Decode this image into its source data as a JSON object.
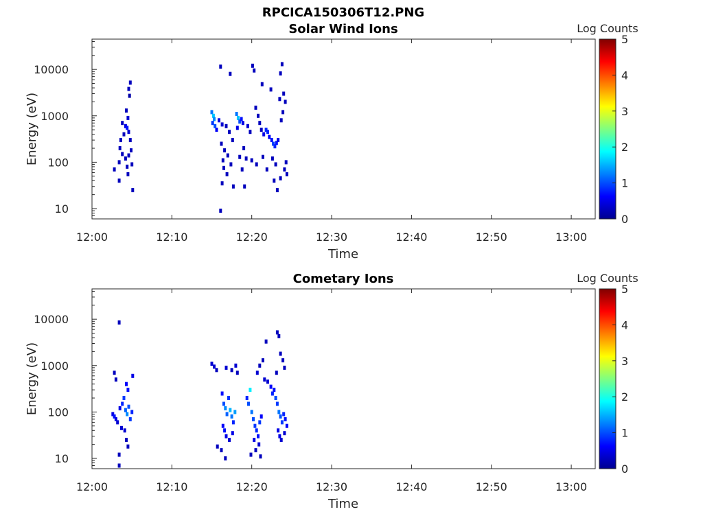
{
  "figure_title": "RPCICA150306T12.PNG",
  "colormap_name": "jet",
  "chart_data": [
    {
      "type": "heatmap",
      "title": "Solar Wind Ions",
      "xlabel": "Time",
      "ylabel": "Energy (eV)",
      "x_ticks": [
        "12:00",
        "12:10",
        "12:20",
        "12:30",
        "12:40",
        "12:50",
        "13:00"
      ],
      "xlim": [
        "12:00",
        "13:03"
      ],
      "y_scale": "log",
      "y_ticks": [
        "10",
        "100",
        "1000",
        "10000"
      ],
      "ylim": [
        6,
        45000
      ],
      "colorbar": {
        "label": "Log Counts",
        "ticks": [
          "0",
          "1",
          "2",
          "3",
          "4",
          "5"
        ],
        "range": [
          0,
          5
        ]
      },
      "cells": [
        {
          "t": 4.8,
          "e": 5200,
          "v": 0.3
        },
        {
          "t": 4.6,
          "e": 3800,
          "v": 0.3
        },
        {
          "t": 4.7,
          "e": 2700,
          "v": 0.2
        },
        {
          "t": 4.3,
          "e": 1300,
          "v": 0.3
        },
        {
          "t": 4.5,
          "e": 900,
          "v": 0.4
        },
        {
          "t": 3.8,
          "e": 700,
          "v": 0.3
        },
        {
          "t": 4.2,
          "e": 600,
          "v": 0.5
        },
        {
          "t": 4.4,
          "e": 550,
          "v": 0.7
        },
        {
          "t": 4.6,
          "e": 450,
          "v": 0.4
        },
        {
          "t": 4.0,
          "e": 400,
          "v": 0.3
        },
        {
          "t": 3.6,
          "e": 300,
          "v": 0.3
        },
        {
          "t": 4.8,
          "e": 300,
          "v": 0.3
        },
        {
          "t": 3.5,
          "e": 200,
          "v": 0.3
        },
        {
          "t": 4.9,
          "e": 180,
          "v": 0.3
        },
        {
          "t": 3.8,
          "e": 150,
          "v": 0.3
        },
        {
          "t": 4.6,
          "e": 140,
          "v": 0.3
        },
        {
          "t": 4.2,
          "e": 120,
          "v": 0.3
        },
        {
          "t": 3.4,
          "e": 100,
          "v": 0.3
        },
        {
          "t": 5.0,
          "e": 90,
          "v": 0.3
        },
        {
          "t": 4.4,
          "e": 80,
          "v": 0.3
        },
        {
          "t": 2.8,
          "e": 70,
          "v": 0.3
        },
        {
          "t": 4.5,
          "e": 55,
          "v": 0.3
        },
        {
          "t": 3.4,
          "e": 40,
          "v": 0.3
        },
        {
          "t": 5.1,
          "e": 25,
          "v": 0.3
        },
        {
          "t": 15.0,
          "e": 1200,
          "v": 1.2
        },
        {
          "t": 15.2,
          "e": 1000,
          "v": 1.6
        },
        {
          "t": 15.3,
          "e": 850,
          "v": 1.3
        },
        {
          "t": 15.1,
          "e": 700,
          "v": 0.9
        },
        {
          "t": 15.4,
          "e": 600,
          "v": 1.0
        },
        {
          "t": 15.6,
          "e": 500,
          "v": 0.6
        },
        {
          "t": 15.9,
          "e": 800,
          "v": 0.5
        },
        {
          "t": 16.3,
          "e": 650,
          "v": 0.4
        },
        {
          "t": 16.1,
          "e": 11500,
          "v": 0.3
        },
        {
          "t": 17.3,
          "e": 8000,
          "v": 0.3
        },
        {
          "t": 16.8,
          "e": 600,
          "v": 0.3
        },
        {
          "t": 17.2,
          "e": 450,
          "v": 0.3
        },
        {
          "t": 17.6,
          "e": 300,
          "v": 0.3
        },
        {
          "t": 18.1,
          "e": 1100,
          "v": 1.2
        },
        {
          "t": 18.3,
          "e": 900,
          "v": 1.6
        },
        {
          "t": 18.5,
          "e": 750,
          "v": 1.0
        },
        {
          "t": 18.7,
          "e": 850,
          "v": 0.7
        },
        {
          "t": 18.9,
          "e": 700,
          "v": 0.5
        },
        {
          "t": 18.2,
          "e": 550,
          "v": 0.5
        },
        {
          "t": 19.5,
          "e": 600,
          "v": 0.4
        },
        {
          "t": 19.8,
          "e": 450,
          "v": 0.3
        },
        {
          "t": 20.1,
          "e": 12000,
          "v": 0.3
        },
        {
          "t": 20.3,
          "e": 9500,
          "v": 0.3
        },
        {
          "t": 20.5,
          "e": 1500,
          "v": 0.3
        },
        {
          "t": 20.8,
          "e": 1000,
          "v": 0.3
        },
        {
          "t": 21.3,
          "e": 4800,
          "v": 0.3
        },
        {
          "t": 21.0,
          "e": 700,
          "v": 0.3
        },
        {
          "t": 21.2,
          "e": 500,
          "v": 0.3
        },
        {
          "t": 21.5,
          "e": 400,
          "v": 0.5
        },
        {
          "t": 21.8,
          "e": 500,
          "v": 0.8
        },
        {
          "t": 22.0,
          "e": 450,
          "v": 0.8
        },
        {
          "t": 22.2,
          "e": 350,
          "v": 0.6
        },
        {
          "t": 22.5,
          "e": 300,
          "v": 0.7
        },
        {
          "t": 22.7,
          "e": 250,
          "v": 0.9
        },
        {
          "t": 22.9,
          "e": 220,
          "v": 0.8
        },
        {
          "t": 23.1,
          "e": 260,
          "v": 0.7
        },
        {
          "t": 23.3,
          "e": 300,
          "v": 0.5
        },
        {
          "t": 22.4,
          "e": 3700,
          "v": 0.3
        },
        {
          "t": 23.5,
          "e": 2300,
          "v": 0.3
        },
        {
          "t": 23.8,
          "e": 13000,
          "v": 0.3
        },
        {
          "t": 23.6,
          "e": 8200,
          "v": 0.3
        },
        {
          "t": 24.0,
          "e": 3000,
          "v": 0.3
        },
        {
          "t": 24.2,
          "e": 2000,
          "v": 0.3
        },
        {
          "t": 23.9,
          "e": 1200,
          "v": 0.3
        },
        {
          "t": 23.7,
          "e": 800,
          "v": 0.3
        },
        {
          "t": 16.2,
          "e": 250,
          "v": 0.3
        },
        {
          "t": 16.6,
          "e": 180,
          "v": 0.3
        },
        {
          "t": 17.0,
          "e": 140,
          "v": 0.3
        },
        {
          "t": 16.4,
          "e": 110,
          "v": 0.3
        },
        {
          "t": 17.4,
          "e": 90,
          "v": 0.3
        },
        {
          "t": 16.5,
          "e": 75,
          "v": 0.3
        },
        {
          "t": 16.9,
          "e": 55,
          "v": 0.3
        },
        {
          "t": 16.3,
          "e": 35,
          "v": 0.3
        },
        {
          "t": 17.7,
          "e": 30,
          "v": 0.3
        },
        {
          "t": 16.1,
          "e": 9,
          "v": 0.3
        },
        {
          "t": 19.0,
          "e": 200,
          "v": 0.3
        },
        {
          "t": 18.5,
          "e": 130,
          "v": 0.3
        },
        {
          "t": 19.3,
          "e": 120,
          "v": 0.3
        },
        {
          "t": 18.8,
          "e": 70,
          "v": 0.3
        },
        {
          "t": 20.0,
          "e": 110,
          "v": 0.3
        },
        {
          "t": 20.6,
          "e": 90,
          "v": 0.3
        },
        {
          "t": 21.4,
          "e": 130,
          "v": 0.3
        },
        {
          "t": 21.9,
          "e": 70,
          "v": 0.3
        },
        {
          "t": 22.6,
          "e": 120,
          "v": 0.3
        },
        {
          "t": 23.0,
          "e": 90,
          "v": 0.3
        },
        {
          "t": 22.8,
          "e": 40,
          "v": 0.3
        },
        {
          "t": 23.2,
          "e": 25,
          "v": 0.3
        },
        {
          "t": 23.6,
          "e": 45,
          "v": 0.3
        },
        {
          "t": 24.1,
          "e": 70,
          "v": 0.3
        },
        {
          "t": 24.3,
          "e": 100,
          "v": 0.3
        },
        {
          "t": 19.1,
          "e": 30,
          "v": 0.3
        },
        {
          "t": 24.4,
          "e": 55,
          "v": 0.3
        }
      ]
    },
    {
      "type": "heatmap",
      "title": "Cometary Ions",
      "xlabel": "Time",
      "ylabel": "Energy (eV)",
      "x_ticks": [
        "12:00",
        "12:10",
        "12:20",
        "12:30",
        "12:40",
        "12:50",
        "13:00"
      ],
      "xlim": [
        "12:00",
        "13:03"
      ],
      "y_scale": "log",
      "y_ticks": [
        "10",
        "100",
        "1000",
        "10000"
      ],
      "ylim": [
        6,
        45000
      ],
      "colorbar": {
        "label": "Log Counts",
        "ticks": [
          "0",
          "1",
          "2",
          "3",
          "4",
          "5"
        ],
        "range": [
          0,
          5
        ]
      },
      "cells": [
        {
          "t": 3.4,
          "e": 8500,
          "v": 0.3
        },
        {
          "t": 2.8,
          "e": 700,
          "v": 0.3
        },
        {
          "t": 3.0,
          "e": 500,
          "v": 0.3
        },
        {
          "t": 2.6,
          "e": 90,
          "v": 0.5
        },
        {
          "t": 2.8,
          "e": 80,
          "v": 0.7
        },
        {
          "t": 3.0,
          "e": 70,
          "v": 0.5
        },
        {
          "t": 3.2,
          "e": 60,
          "v": 0.4
        },
        {
          "t": 3.5,
          "e": 120,
          "v": 0.5
        },
        {
          "t": 3.8,
          "e": 150,
          "v": 0.8
        },
        {
          "t": 4.0,
          "e": 200,
          "v": 0.9
        },
        {
          "t": 4.2,
          "e": 110,
          "v": 1.1
        },
        {
          "t": 4.4,
          "e": 90,
          "v": 1.3
        },
        {
          "t": 4.6,
          "e": 130,
          "v": 1.0
        },
        {
          "t": 4.8,
          "e": 70,
          "v": 0.9
        },
        {
          "t": 5.0,
          "e": 100,
          "v": 0.8
        },
        {
          "t": 4.3,
          "e": 400,
          "v": 0.6
        },
        {
          "t": 4.5,
          "e": 300,
          "v": 0.7
        },
        {
          "t": 5.1,
          "e": 600,
          "v": 0.5
        },
        {
          "t": 3.7,
          "e": 45,
          "v": 0.4
        },
        {
          "t": 4.1,
          "e": 40,
          "v": 0.4
        },
        {
          "t": 3.4,
          "e": 12,
          "v": 0.3
        },
        {
          "t": 4.3,
          "e": 25,
          "v": 0.3
        },
        {
          "t": 3.4,
          "e": 7,
          "v": 0.3
        },
        {
          "t": 4.5,
          "e": 18,
          "v": 0.3
        },
        {
          "t": 15.0,
          "e": 1100,
          "v": 0.4
        },
        {
          "t": 15.3,
          "e": 950,
          "v": 0.4
        },
        {
          "t": 15.6,
          "e": 800,
          "v": 0.3
        },
        {
          "t": 16.8,
          "e": 900,
          "v": 0.4
        },
        {
          "t": 17.5,
          "e": 800,
          "v": 0.3
        },
        {
          "t": 18.0,
          "e": 1000,
          "v": 0.4
        },
        {
          "t": 18.2,
          "e": 700,
          "v": 0.3
        },
        {
          "t": 16.3,
          "e": 250,
          "v": 0.7
        },
        {
          "t": 16.5,
          "e": 150,
          "v": 1.0
        },
        {
          "t": 16.7,
          "e": 120,
          "v": 1.3
        },
        {
          "t": 16.9,
          "e": 90,
          "v": 1.1
        },
        {
          "t": 17.1,
          "e": 200,
          "v": 0.9
        },
        {
          "t": 17.3,
          "e": 110,
          "v": 1.5
        },
        {
          "t": 17.5,
          "e": 80,
          "v": 1.2
        },
        {
          "t": 17.7,
          "e": 60,
          "v": 0.8
        },
        {
          "t": 17.9,
          "e": 100,
          "v": 1.4
        },
        {
          "t": 16.4,
          "e": 50,
          "v": 0.6
        },
        {
          "t": 16.6,
          "e": 40,
          "v": 0.7
        },
        {
          "t": 16.8,
          "e": 30,
          "v": 0.5
        },
        {
          "t": 17.2,
          "e": 25,
          "v": 0.4
        },
        {
          "t": 17.6,
          "e": 35,
          "v": 0.5
        },
        {
          "t": 16.2,
          "e": 15,
          "v": 0.3
        },
        {
          "t": 16.7,
          "e": 10,
          "v": 0.3
        },
        {
          "t": 15.7,
          "e": 18,
          "v": 0.3
        },
        {
          "t": 19.4,
          "e": 200,
          "v": 0.8
        },
        {
          "t": 19.6,
          "e": 150,
          "v": 1.0
        },
        {
          "t": 19.8,
          "e": 300,
          "v": 1.8
        },
        {
          "t": 20.0,
          "e": 100,
          "v": 1.2
        },
        {
          "t": 20.2,
          "e": 70,
          "v": 1.0
        },
        {
          "t": 20.4,
          "e": 50,
          "v": 0.9
        },
        {
          "t": 20.6,
          "e": 40,
          "v": 0.8
        },
        {
          "t": 20.8,
          "e": 30,
          "v": 0.7
        },
        {
          "t": 21.0,
          "e": 60,
          "v": 0.9
        },
        {
          "t": 21.2,
          "e": 80,
          "v": 0.6
        },
        {
          "t": 20.3,
          "e": 25,
          "v": 0.5
        },
        {
          "t": 20.9,
          "e": 20,
          "v": 0.4
        },
        {
          "t": 20.5,
          "e": 15,
          "v": 0.3
        },
        {
          "t": 21.1,
          "e": 11,
          "v": 0.3
        },
        {
          "t": 19.9,
          "e": 12,
          "v": 0.3
        },
        {
          "t": 20.7,
          "e": 700,
          "v": 0.4
        },
        {
          "t": 21.0,
          "e": 1000,
          "v": 0.3
        },
        {
          "t": 21.4,
          "e": 1300,
          "v": 0.3
        },
        {
          "t": 21.6,
          "e": 500,
          "v": 0.4
        },
        {
          "t": 22.0,
          "e": 450,
          "v": 0.4
        },
        {
          "t": 21.8,
          "e": 3300,
          "v": 0.3
        },
        {
          "t": 22.4,
          "e": 350,
          "v": 0.6
        },
        {
          "t": 22.6,
          "e": 250,
          "v": 0.8
        },
        {
          "t": 22.8,
          "e": 300,
          "v": 0.7
        },
        {
          "t": 23.0,
          "e": 200,
          "v": 1.0
        },
        {
          "t": 23.2,
          "e": 150,
          "v": 0.9
        },
        {
          "t": 23.4,
          "e": 100,
          "v": 1.2
        },
        {
          "t": 23.6,
          "e": 80,
          "v": 1.0
        },
        {
          "t": 23.8,
          "e": 60,
          "v": 0.9
        },
        {
          "t": 24.0,
          "e": 90,
          "v": 0.8
        },
        {
          "t": 24.2,
          "e": 70,
          "v": 0.7
        },
        {
          "t": 24.4,
          "e": 50,
          "v": 0.6
        },
        {
          "t": 23.3,
          "e": 40,
          "v": 0.5
        },
        {
          "t": 23.5,
          "e": 30,
          "v": 0.5
        },
        {
          "t": 23.7,
          "e": 25,
          "v": 0.4
        },
        {
          "t": 24.1,
          "e": 35,
          "v": 0.4
        },
        {
          "t": 23.2,
          "e": 5200,
          "v": 0.3
        },
        {
          "t": 23.4,
          "e": 4300,
          "v": 0.3
        },
        {
          "t": 23.6,
          "e": 1800,
          "v": 0.3
        },
        {
          "t": 23.9,
          "e": 1300,
          "v": 0.3
        },
        {
          "t": 24.1,
          "e": 900,
          "v": 0.3
        },
        {
          "t": 23.1,
          "e": 700,
          "v": 0.3
        }
      ]
    }
  ]
}
